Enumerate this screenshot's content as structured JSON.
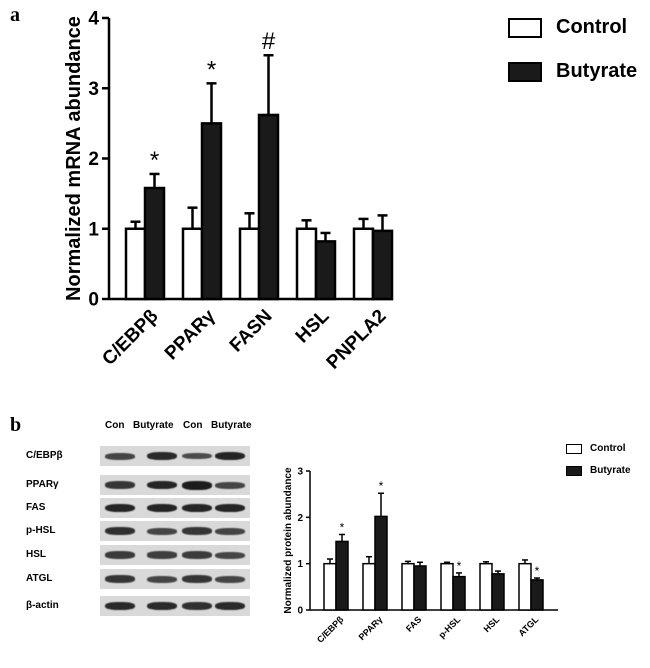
{
  "panels": {
    "a": "a",
    "b": "b"
  },
  "colors": {
    "control": "#ffffff",
    "butyrate": "#1a1a1a",
    "axis": "#000000"
  },
  "legend_a": {
    "control": "Control",
    "butyrate": "Butyrate"
  },
  "legend_b": {
    "control": "Control",
    "butyrate": "Butyrate"
  },
  "blot": {
    "lanes": [
      "Con",
      "Butyrate",
      "Con",
      "Butyrate"
    ],
    "rows": [
      {
        "label": "C/EBPβ",
        "bands": [
          0.6,
          0.85,
          0.55,
          0.9
        ]
      },
      {
        "label": "PPARγ",
        "bands": [
          0.75,
          0.9,
          1.0,
          0.6
        ]
      },
      {
        "label": "FAS",
        "bands": [
          0.9,
          0.9,
          0.9,
          0.9
        ]
      },
      {
        "label": "p-HSL",
        "bands": [
          0.8,
          0.6,
          0.75,
          0.6
        ]
      },
      {
        "label": "HSL",
        "bands": [
          0.7,
          0.65,
          0.7,
          0.6
        ]
      },
      {
        "label": "ATGL",
        "bands": [
          0.75,
          0.6,
          0.75,
          0.6
        ]
      },
      {
        "label": "β-actin",
        "bands": [
          0.85,
          0.85,
          0.8,
          0.85
        ]
      }
    ]
  },
  "chart_data": [
    {
      "id": "a",
      "type": "bar",
      "title": "",
      "xlabel": "",
      "ylabel": "Normalized mRNA abundance",
      "ylim": [
        0,
        4
      ],
      "yticks": [
        "0",
        "1",
        "2",
        "3",
        "4"
      ],
      "categories": [
        "C/EBPβ",
        "PPARγ",
        "FASN",
        "HSL",
        "PNPLA2"
      ],
      "series": [
        {
          "name": "Control",
          "values": [
            1.0,
            1.0,
            1.0,
            1.0,
            1.0
          ],
          "errors": [
            0.1,
            0.3,
            0.22,
            0.12,
            0.14
          ]
        },
        {
          "name": "Butyrate",
          "values": [
            1.58,
            2.5,
            2.62,
            0.82,
            0.97
          ],
          "errors": [
            0.2,
            0.57,
            0.85,
            0.12,
            0.22
          ]
        }
      ],
      "annotations": [
        {
          "category": "C/EBPβ",
          "series": "Butyrate",
          "text": "*"
        },
        {
          "category": "PPARγ",
          "series": "Butyrate",
          "text": "*"
        },
        {
          "category": "FASN",
          "series": "Butyrate",
          "text": "#"
        }
      ]
    },
    {
      "id": "b",
      "type": "bar",
      "title": "",
      "xlabel": "",
      "ylabel": "Normalized protein abundance",
      "ylim": [
        0,
        3
      ],
      "yticks": [
        "0",
        "1",
        "2",
        "3"
      ],
      "categories": [
        "C/EBPβ",
        "PPARγ",
        "FAS",
        "p-HSL",
        "HSL",
        "ATGL"
      ],
      "series": [
        {
          "name": "Control",
          "values": [
            1.0,
            1.0,
            1.0,
            1.0,
            1.0,
            1.0
          ],
          "errors": [
            0.1,
            0.15,
            0.05,
            0.03,
            0.04,
            0.08
          ]
        },
        {
          "name": "Butyrate",
          "values": [
            1.48,
            2.02,
            0.95,
            0.72,
            0.78,
            0.65
          ],
          "errors": [
            0.15,
            0.5,
            0.08,
            0.08,
            0.06,
            0.04
          ]
        }
      ],
      "annotations": [
        {
          "category": "C/EBPβ",
          "series": "Butyrate",
          "text": "*"
        },
        {
          "category": "PPARγ",
          "series": "Butyrate",
          "text": "*"
        },
        {
          "category": "p-HSL",
          "series": "Butyrate",
          "text": "*"
        },
        {
          "category": "ATGL",
          "series": "Butyrate",
          "text": "*"
        }
      ]
    }
  ]
}
